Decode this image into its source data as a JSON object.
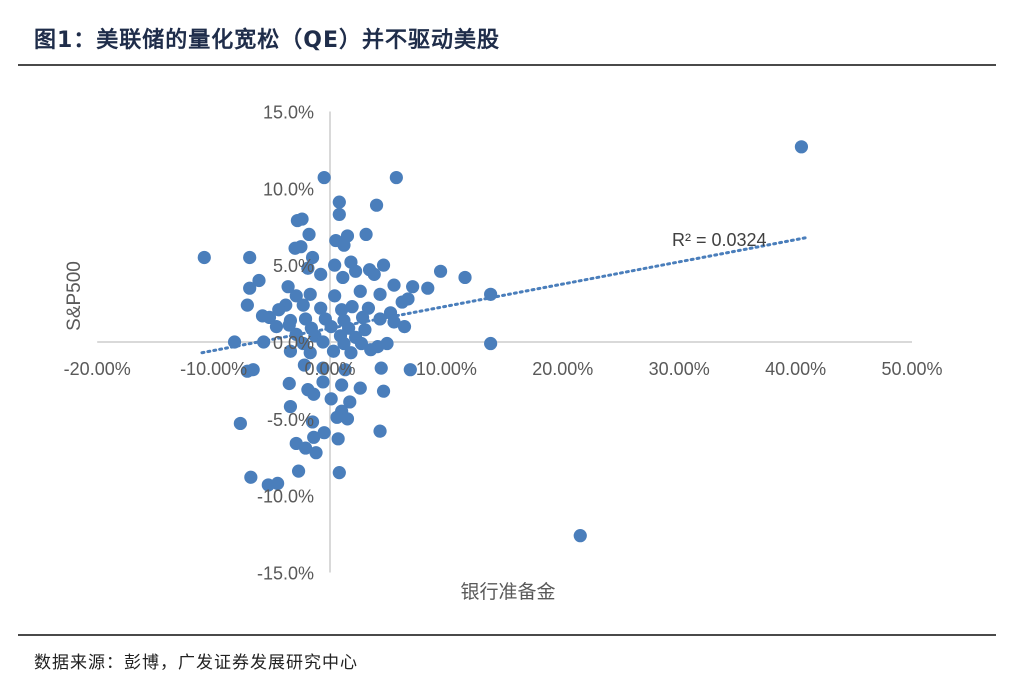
{
  "header": {
    "title": "图1：美联储的量化宽松（QE）并不驱动美股"
  },
  "footer": {
    "source": "数据来源：彭博，广发证券发展研究中心"
  },
  "colors": {
    "point": "#4a7ebb",
    "axis": "#d9d9d9",
    "trend": "#4a7ebb"
  },
  "chart_data": {
    "type": "scatter",
    "title": "美联储的量化宽松（QE）并不驱动美股",
    "xlabel": "银行准备金",
    "ylabel": "S&P500",
    "xlim": [
      -0.2,
      0.5
    ],
    "ylim": [
      -0.15,
      0.15
    ],
    "x_ticks": [
      "-20.00%",
      "-10.00%",
      "0.00%",
      "10.00%",
      "20.00%",
      "30.00%",
      "40.00%",
      "50.00%"
    ],
    "y_ticks": [
      "15.0%",
      "10.0%",
      "5.0%",
      "0.0%",
      "-5.0%",
      "-10.0%",
      "-15.0%"
    ],
    "x_tick_values": [
      -0.2,
      -0.1,
      0.0,
      0.1,
      0.2,
      0.3,
      0.4,
      0.5
    ],
    "y_tick_values": [
      0.15,
      0.1,
      0.05,
      0.0,
      -0.05,
      -0.1,
      -0.15
    ],
    "grid": false,
    "trendline": {
      "type": "linear",
      "x_range": [
        -0.11,
        0.41
      ],
      "y_range": [
        -0.007,
        0.068
      ],
      "r2_label": "R² = 0.0324"
    },
    "points": [
      [
        0.405,
        0.127
      ],
      [
        0.215,
        -0.126
      ],
      [
        -0.108,
        0.055
      ],
      [
        -0.069,
        0.055
      ],
      [
        -0.005,
        0.107
      ],
      [
        0.057,
        0.107
      ],
      [
        0.008,
        0.091
      ],
      [
        0.008,
        0.083
      ],
      [
        0.04,
        0.089
      ],
      [
        -0.028,
        0.079
      ],
      [
        -0.024,
        0.08
      ],
      [
        0.015,
        0.069
      ],
      [
        0.031,
        0.07
      ],
      [
        0.005,
        0.066
      ],
      [
        -0.018,
        0.07
      ],
      [
        -0.025,
        0.062
      ],
      [
        -0.03,
        0.061
      ],
      [
        0.012,
        0.063
      ],
      [
        -0.015,
        0.055
      ],
      [
        0.018,
        0.052
      ],
      [
        0.004,
        0.05
      ],
      [
        -0.019,
        0.048
      ],
      [
        0.022,
        0.046
      ],
      [
        0.034,
        0.047
      ],
      [
        0.046,
        0.05
      ],
      [
        0.095,
        0.046
      ],
      [
        0.116,
        0.042
      ],
      [
        0.038,
        0.044
      ],
      [
        -0.008,
        0.044
      ],
      [
        0.011,
        0.042
      ],
      [
        -0.061,
        0.04
      ],
      [
        -0.069,
        0.035
      ],
      [
        -0.036,
        0.036
      ],
      [
        0.055,
        0.037
      ],
      [
        0.071,
        0.036
      ],
      [
        0.084,
        0.035
      ],
      [
        -0.029,
        0.03
      ],
      [
        -0.017,
        0.031
      ],
      [
        0.004,
        0.03
      ],
      [
        0.026,
        0.033
      ],
      [
        0.043,
        0.031
      ],
      [
        0.062,
        0.026
      ],
      [
        0.067,
        0.028
      ],
      [
        0.138,
        0.031
      ],
      [
        -0.038,
        0.024
      ],
      [
        -0.071,
        0.024
      ],
      [
        -0.044,
        0.021
      ],
      [
        -0.023,
        0.024
      ],
      [
        -0.008,
        0.022
      ],
      [
        0.01,
        0.021
      ],
      [
        0.019,
        0.023
      ],
      [
        0.033,
        0.022
      ],
      [
        0.052,
        0.019
      ],
      [
        -0.058,
        0.017
      ],
      [
        -0.052,
        0.016
      ],
      [
        -0.034,
        0.014
      ],
      [
        -0.021,
        0.015
      ],
      [
        -0.004,
        0.015
      ],
      [
        0.012,
        0.014
      ],
      [
        0.028,
        0.016
      ],
      [
        0.043,
        0.015
      ],
      [
        0.055,
        0.013
      ],
      [
        -0.046,
        0.01
      ],
      [
        -0.035,
        0.011
      ],
      [
        -0.016,
        0.009
      ],
      [
        0.001,
        0.01
      ],
      [
        0.016,
        0.009
      ],
      [
        0.03,
        0.008
      ],
      [
        0.064,
        0.01
      ],
      [
        -0.029,
        0.005
      ],
      [
        -0.013,
        0.004
      ],
      [
        0.009,
        0.004
      ],
      [
        0.022,
        0.003
      ],
      [
        -0.082,
        0.0
      ],
      [
        -0.057,
        0.0
      ],
      [
        0.138,
        -0.001
      ],
      [
        -0.023,
        -0.001
      ],
      [
        -0.006,
        0.0
      ],
      [
        0.012,
        -0.001
      ],
      [
        0.027,
        -0.001
      ],
      [
        0.041,
        -0.003
      ],
      [
        0.049,
        -0.001
      ],
      [
        -0.034,
        -0.006
      ],
      [
        -0.017,
        -0.007
      ],
      [
        0.003,
        -0.006
      ],
      [
        0.018,
        -0.007
      ],
      [
        0.035,
        -0.005
      ],
      [
        -0.071,
        -0.019
      ],
      [
        -0.066,
        -0.018
      ],
      [
        -0.022,
        -0.015
      ],
      [
        -0.006,
        -0.017
      ],
      [
        0.013,
        -0.018
      ],
      [
        0.044,
        -0.017
      ],
      [
        0.069,
        -0.018
      ],
      [
        -0.035,
        -0.027
      ],
      [
        -0.019,
        -0.031
      ],
      [
        -0.006,
        -0.026
      ],
      [
        0.01,
        -0.028
      ],
      [
        0.026,
        -0.03
      ],
      [
        0.046,
        -0.032
      ],
      [
        -0.014,
        -0.034
      ],
      [
        0.001,
        -0.037
      ],
      [
        0.017,
        -0.039
      ],
      [
        -0.034,
        -0.042
      ],
      [
        0.01,
        -0.045
      ],
      [
        0.006,
        -0.049
      ],
      [
        -0.015,
        -0.052
      ],
      [
        -0.077,
        -0.053
      ],
      [
        0.015,
        -0.05
      ],
      [
        -0.005,
        -0.059
      ],
      [
        0.043,
        -0.058
      ],
      [
        -0.014,
        -0.062
      ],
      [
        -0.029,
        -0.066
      ],
      [
        0.007,
        -0.063
      ],
      [
        -0.021,
        -0.069
      ],
      [
        -0.012,
        -0.072
      ],
      [
        -0.027,
        -0.084
      ],
      [
        0.008,
        -0.085
      ],
      [
        -0.068,
        -0.088
      ],
      [
        -0.053,
        -0.093
      ],
      [
        -0.045,
        -0.092
      ]
    ]
  }
}
